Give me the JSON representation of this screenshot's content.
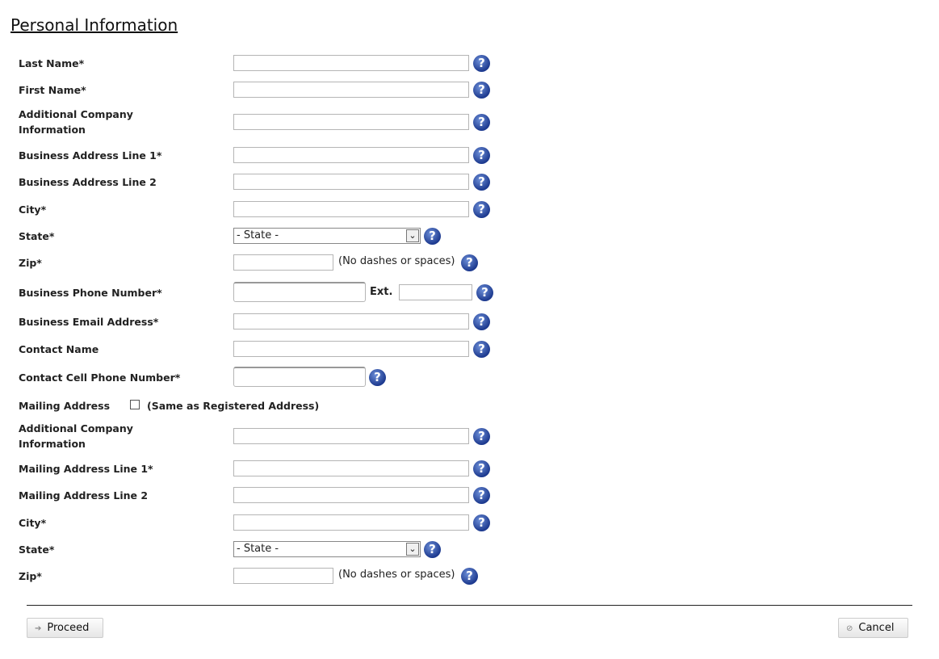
{
  "page_title": "Personal Information",
  "help_glyph": "?",
  "fields": [
    {
      "label": "Last Name*",
      "type": "text",
      "value": ""
    },
    {
      "label": "First Name*",
      "type": "text",
      "value": ""
    },
    {
      "label": "Additional Company Information",
      "type": "text",
      "value": ""
    },
    {
      "label": "Business Address Line 1*",
      "type": "text",
      "value": ""
    },
    {
      "label": "Business Address Line 2",
      "type": "text",
      "value": ""
    },
    {
      "label": "City*",
      "type": "text",
      "value": ""
    },
    {
      "label": "State*",
      "type": "select",
      "value": "- State -"
    },
    {
      "label": "Zip*",
      "type": "zip",
      "value": "",
      "note": "(No dashes or spaces)"
    },
    {
      "label": "Business Phone Number*",
      "type": "phone",
      "value": "",
      "ext_label": "Ext.",
      "ext_value": ""
    },
    {
      "label": "Business Email Address*",
      "type": "text",
      "value": ""
    },
    {
      "label": "Contact Name",
      "type": "text",
      "value": ""
    },
    {
      "label": "Contact Cell Phone Number*",
      "type": "cell",
      "value": ""
    },
    {
      "label": "Mailing Address",
      "type": "checkbox",
      "checked": false,
      "note": "(Same as Registered Address)"
    },
    {
      "label": "Additional Company Information",
      "type": "text",
      "value": ""
    },
    {
      "label": "Mailing Address Line 1*",
      "type": "text",
      "value": ""
    },
    {
      "label": "Mailing Address Line 2",
      "type": "text",
      "value": ""
    },
    {
      "label": "City*",
      "type": "text",
      "value": ""
    },
    {
      "label": "State*",
      "type": "select",
      "value": "- State -"
    },
    {
      "label": "Zip*",
      "type": "zip",
      "value": "",
      "note": "(No dashes or spaces)"
    }
  ],
  "buttons": {
    "proceed": "Proceed",
    "proceed_icon": "arrow-right-icon",
    "cancel": "Cancel",
    "cancel_icon": "no-entry-icon"
  }
}
